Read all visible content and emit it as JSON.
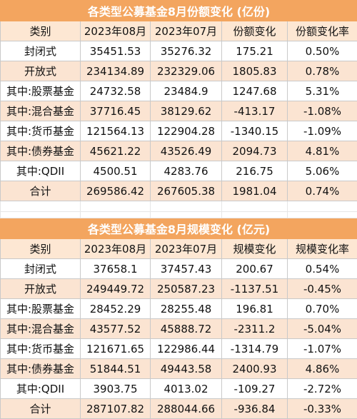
{
  "table1": {
    "title": "各类型公募基金8月份额变化 (亿份)",
    "headers": [
      "类别",
      "2023年08月",
      "2023年07月",
      "份额变化",
      "份额变化率"
    ],
    "rows": [
      [
        "封闭式",
        "35451.53",
        "35276.32",
        "175.21",
        "0.50%"
      ],
      [
        "开放式",
        "234134.89",
        "232329.06",
        "1805.83",
        "0.78%"
      ],
      [
        "其中:股票基金",
        "24732.58",
        "23484.9",
        "1247.68",
        "5.31%"
      ],
      [
        "其中:混合基金",
        "37716.45",
        "38129.62",
        "-413.17",
        "-1.08%"
      ],
      [
        "其中:货币基金",
        "121564.13",
        "122904.28",
        "-1340.15",
        "-1.09%"
      ],
      [
        "其中:债券基金",
        "45621.22",
        "43526.49",
        "2094.73",
        "4.81%"
      ],
      [
        "其中:QDII",
        "4500.51",
        "4283.76",
        "216.75",
        "5.06%"
      ],
      [
        "合计",
        "269586.42",
        "267605.38",
        "1981.04",
        "0.74%"
      ]
    ]
  },
  "table2": {
    "title": "各类型公募基金8月规模变化 (亿元)",
    "headers": [
      "类别",
      "2023年08月",
      "2023年07月",
      "规模变化",
      "规模变化率"
    ],
    "rows": [
      [
        "封闭式",
        "37658.1",
        "37457.43",
        "200.67",
        "0.54%"
      ],
      [
        "开放式",
        "249449.72",
        "250587.23",
        "-1137.51",
        "-0.45%"
      ],
      [
        "其中:股票基金",
        "28452.29",
        "28255.48",
        "196.81",
        "0.70%"
      ],
      [
        "其中:混合基金",
        "43577.52",
        "45888.72",
        "-2311.2",
        "-5.04%"
      ],
      [
        "其中:货币基金",
        "121671.65",
        "122986.44",
        "-1314.79",
        "-1.07%"
      ],
      [
        "其中:债券基金",
        "51844.51",
        "49443.58",
        "2400.93",
        "4.86%"
      ],
      [
        "其中:QDII",
        "3903.75",
        "4013.02",
        "-109.27",
        "-2.72%"
      ],
      [
        "合计",
        "287107.82",
        "288044.66",
        "-936.84",
        "-0.33%"
      ]
    ]
  },
  "colors": {
    "title_bg": "#f3a55f",
    "header_bg": "#fde7d3",
    "alt_row_bg": "#fbe4d2",
    "grid": "#c9c9c9"
  }
}
